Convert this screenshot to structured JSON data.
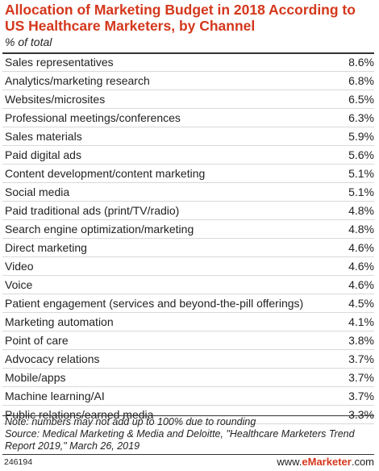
{
  "chart_data": {
    "type": "table",
    "title": "Allocation of Marketing Budget in 2018 According to US Healthcare Marketers, by Channel",
    "subtitle": "% of total",
    "rows": [
      {
        "label": "Sales representatives",
        "value": "8.6%"
      },
      {
        "label": "Analytics/marketing research",
        "value": "6.8%"
      },
      {
        "label": "Websites/microsites",
        "value": "6.5%"
      },
      {
        "label": "Professional meetings/conferences",
        "value": "6.3%"
      },
      {
        "label": "Sales materials",
        "value": "5.9%"
      },
      {
        "label": "Paid digital ads",
        "value": "5.6%"
      },
      {
        "label": "Content development/content marketing",
        "value": "5.1%"
      },
      {
        "label": "Social media",
        "value": "5.1%"
      },
      {
        "label": "Paid traditional ads (print/TV/radio)",
        "value": "4.8%"
      },
      {
        "label": "Search engine optimization/marketing",
        "value": "4.8%"
      },
      {
        "label": "Direct marketing",
        "value": "4.6%"
      },
      {
        "label": "Video",
        "value": "4.6%"
      },
      {
        "label": "Voice",
        "value": "4.6%"
      },
      {
        "label": "Patient engagement (services and beyond-the-pill offerings)",
        "value": "4.5%"
      },
      {
        "label": "Marketing automation",
        "value": "4.1%"
      },
      {
        "label": "Point of care",
        "value": "3.8%"
      },
      {
        "label": "Advocacy relations",
        "value": "3.7%"
      },
      {
        "label": "Mobile/apps",
        "value": "3.7%"
      },
      {
        "label": "Machine learning/AI",
        "value": "3.7%"
      },
      {
        "label": "Public relations/earned media",
        "value": "3.3%"
      }
    ]
  },
  "note": {
    "line1": "Note: numbers may not add up to 100% due to rounding",
    "line2": "Source: Medical Marketing & Media and Deloitte, \"Healthcare Marketers Trend Report 2019,\" March 26, 2019"
  },
  "footer": {
    "chart_id": "246194",
    "brand_prefix": "www.",
    "brand_name": "eMarketer",
    "brand_suffix": ".com"
  },
  "colors": {
    "title": "#d4371c",
    "text": "#222222",
    "rule": "#333333",
    "row_divider": "#d9d9d9"
  }
}
